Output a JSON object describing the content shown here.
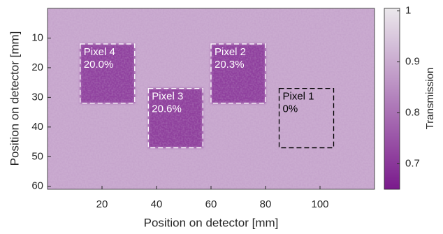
{
  "chart_data": {
    "type": "heatmap",
    "xlabel": "Position on detector [mm]",
    "ylabel": "Position on detector [mm]",
    "xlim": [
      0,
      120
    ],
    "ylim": [
      0,
      61
    ],
    "xticks": [
      20,
      40,
      60,
      80,
      100
    ],
    "yticks": [
      10,
      20,
      30,
      40,
      50,
      60
    ],
    "background": 0.9,
    "categories": [
      "Pixel 4",
      "Pixel 3",
      "Pixel 2",
      "Pixel 1"
    ],
    "values": [
      20.0,
      20.6,
      20.3,
      0
    ],
    "value_labels": [
      "20.0%",
      "20.6%",
      "20.3%",
      "0%"
    ],
    "regions": [
      {
        "x": [
          12,
          32
        ],
        "y": [
          12,
          32
        ]
      },
      {
        "x": [
          37,
          57
        ],
        "y": [
          27,
          47
        ]
      },
      {
        "x": [
          60,
          80
        ],
        "y": [
          12,
          32
        ]
      },
      {
        "x": [
          85,
          105
        ],
        "y": [
          27,
          47
        ]
      }
    ],
    "edge_colors": [
      "#ffffff",
      "#ffffff",
      "#ffffff",
      "#000000"
    ],
    "colorbar": {
      "label": "Transmission",
      "clim": [
        0.65,
        1.005
      ],
      "ticks": [
        1,
        0.9,
        0.8,
        0.7
      ],
      "colors": [
        "#7a1a8c",
        "#ebe8ec"
      ]
    }
  }
}
